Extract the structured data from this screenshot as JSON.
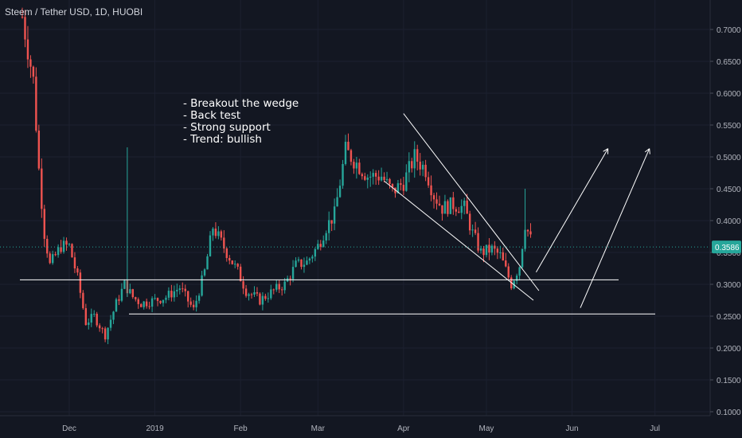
{
  "header": {
    "title": "Steem / Tether USD, 1D, HUOBI"
  },
  "colors": {
    "background": "#131722",
    "grid": "#1c2030",
    "axis_text": "#b2b5be",
    "up": "#26a69a",
    "down": "#ef5350",
    "price_line": "#26a69a",
    "price_label_bg": "#26a69a",
    "drawing": "#ffffff"
  },
  "annotations": [
    "- Breakout the wedge",
    "- Back test",
    "- Strong support",
    "- Trend: bullish"
  ],
  "chart_data": {
    "type": "candlestick",
    "title": "Steem / Tether USD, 1D, HUOBI",
    "y_ticks": [
      "0.1000",
      "0.1500",
      "0.2000",
      "0.2500",
      "0.3000",
      "0.3500",
      "0.4000",
      "0.4500",
      "0.5000",
      "0.5500",
      "0.6000",
      "0.6500",
      "0.7000"
    ],
    "y_range": [
      0.09,
      0.76
    ],
    "x_ticks": [
      "Dec",
      "2019",
      "Feb",
      "Mar",
      "Apr",
      "May",
      "Jun",
      "Jul"
    ],
    "grid": true,
    "current_price": "0.3586",
    "close_series": [
      {
        "date": "Nov 14",
        "close": 0.72
      },
      {
        "date": "Nov 18",
        "close": 0.62
      },
      {
        "date": "Nov 20",
        "close": 0.48
      },
      {
        "date": "Nov 22",
        "close": 0.38
      },
      {
        "date": "Nov 24",
        "close": 0.33
      },
      {
        "date": "Nov 28",
        "close": 0.36
      },
      {
        "date": "Dec 1",
        "close": 0.36
      },
      {
        "date": "Dec 4",
        "close": 0.31
      },
      {
        "date": "Dec 7",
        "close": 0.24
      },
      {
        "date": "Dec 10",
        "close": 0.25
      },
      {
        "date": "Dec 14",
        "close": 0.22
      },
      {
        "date": "Dec 18",
        "close": 0.27
      },
      {
        "date": "Dec 21",
        "close": 0.3
      },
      {
        "date": "Dec 24",
        "close": 0.28
      },
      {
        "date": "Dec 27",
        "close": 0.27
      },
      {
        "date": "Jan 1",
        "close": 0.275
      },
      {
        "date": "Jan 5",
        "close": 0.28
      },
      {
        "date": "Jan 10",
        "close": 0.295
      },
      {
        "date": "Jan 15",
        "close": 0.26
      },
      {
        "date": "Jan 19",
        "close": 0.32
      },
      {
        "date": "Jan 22",
        "close": 0.39
      },
      {
        "date": "Jan 27",
        "close": 0.35
      },
      {
        "date": "Jan 31",
        "close": 0.32
      },
      {
        "date": "Feb 3",
        "close": 0.29
      },
      {
        "date": "Feb 8",
        "close": 0.275
      },
      {
        "date": "Feb 13",
        "close": 0.29
      },
      {
        "date": "Feb 17",
        "close": 0.3
      },
      {
        "date": "Feb 21",
        "close": 0.33
      },
      {
        "date": "Feb 25",
        "close": 0.335
      },
      {
        "date": "Mar 1",
        "close": 0.36
      },
      {
        "date": "Mar 4",
        "close": 0.39
      },
      {
        "date": "Mar 7",
        "close": 0.41
      },
      {
        "date": "Mar 11",
        "close": 0.51
      },
      {
        "date": "Mar 15",
        "close": 0.49
      },
      {
        "date": "Mar 19",
        "close": 0.47
      },
      {
        "date": "Mar 24",
        "close": 0.47
      },
      {
        "date": "Mar 28",
        "close": 0.445
      },
      {
        "date": "Apr 1",
        "close": 0.46
      },
      {
        "date": "Apr 5",
        "close": 0.5
      },
      {
        "date": "Apr 9",
        "close": 0.48
      },
      {
        "date": "Apr 12",
        "close": 0.44
      },
      {
        "date": "Apr 15",
        "close": 0.42
      },
      {
        "date": "Apr 19",
        "close": 0.425
      },
      {
        "date": "Apr 23",
        "close": 0.42
      },
      {
        "date": "Apr 26",
        "close": 0.38
      },
      {
        "date": "Apr 29",
        "close": 0.35
      },
      {
        "date": "May 3",
        "close": 0.355
      },
      {
        "date": "May 6",
        "close": 0.345
      },
      {
        "date": "May 10",
        "close": 0.3
      },
      {
        "date": "May 13",
        "close": 0.33
      },
      {
        "date": "May 15",
        "close": 0.395
      },
      {
        "date": "May 18",
        "close": 0.3586
      }
    ],
    "drawings": {
      "support_lines": [
        0.307,
        0.2535
      ],
      "wedge_upper": {
        "from": {
          "date": "Apr 1",
          "price": 0.568
        },
        "to": {
          "date": "May 20",
          "price": 0.29
        }
      },
      "wedge_lower": {
        "from": {
          "date": "Mar 25",
          "price": 0.462
        },
        "to": {
          "date": "May 18",
          "price": 0.275
        }
      },
      "arrows": [
        {
          "from": {
            "date": "May 19",
            "price": 0.319
          },
          "to": {
            "date": "Jun 14",
            "price": 0.513
          }
        },
        {
          "from": {
            "date": "Jun 4",
            "price": 0.263
          },
          "to": {
            "date": "Jun 29",
            "price": 0.513
          }
        }
      ]
    }
  }
}
